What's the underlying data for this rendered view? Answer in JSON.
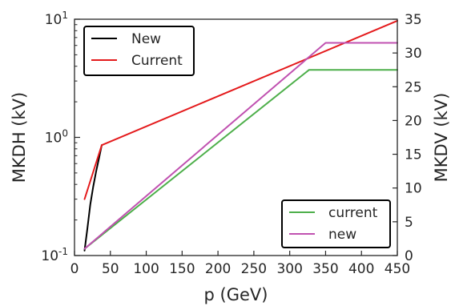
{
  "chart_data": {
    "type": "line",
    "xlabel": "p (GeV)",
    "ylabel_left": "MKDH (kV)",
    "ylabel_right": "MKDV (kV)",
    "xlim": [
      0,
      450
    ],
    "ylim_left": [
      0.1,
      10
    ],
    "yscale_left": "log",
    "ylim_right": [
      0,
      35
    ],
    "x_ticks": [
      "0",
      "50",
      "100",
      "150",
      "200",
      "250",
      "300",
      "350",
      "400",
      "450"
    ],
    "x_tick_values": [
      0,
      50,
      100,
      150,
      200,
      250,
      300,
      350,
      400,
      450
    ],
    "left_ticks": [
      {
        "value": 0.1,
        "base": "10",
        "exp": "-1"
      },
      {
        "value": 1,
        "base": "10",
        "exp": "0"
      },
      {
        "value": 10,
        "base": "10",
        "exp": "1"
      }
    ],
    "right_ticks": [
      "0",
      "5",
      "10",
      "15",
      "20",
      "25",
      "30",
      "35"
    ],
    "right_tick_values": [
      0,
      5,
      10,
      15,
      20,
      25,
      30,
      35
    ],
    "grid": false,
    "legend_left": {
      "placement": "top-left",
      "entries": [
        {
          "label": "New",
          "color": "#000000"
        },
        {
          "label": "Current",
          "color": "#e41a1c"
        }
      ]
    },
    "legend_right": {
      "placement": "bottom-right",
      "entries": [
        {
          "label": "current",
          "color": "#4daf4a"
        },
        {
          "label": "new",
          "color": "#c051b0"
        }
      ]
    },
    "series": [
      {
        "name": "New",
        "axis": "left",
        "color": "#000000",
        "x": [
          14,
          18,
          22,
          26,
          30,
          34,
          38
        ],
        "y": [
          0.11,
          0.17,
          0.27,
          0.38,
          0.51,
          0.66,
          0.86
        ]
      },
      {
        "name": "Current",
        "axis": "left",
        "color": "#e41a1c",
        "x": [
          14,
          38,
          450
        ],
        "y": [
          0.3,
          0.86,
          9.7
        ]
      },
      {
        "name": "current",
        "axis": "right",
        "color": "#4daf4a",
        "x": [
          14,
          327,
          450
        ],
        "y": [
          1.0,
          27.5,
          27.5
        ]
      },
      {
        "name": "new",
        "axis": "right",
        "color": "#c051b0",
        "x": [
          14,
          350,
          450
        ],
        "y": [
          1.0,
          31.5,
          31.5
        ]
      }
    ]
  }
}
